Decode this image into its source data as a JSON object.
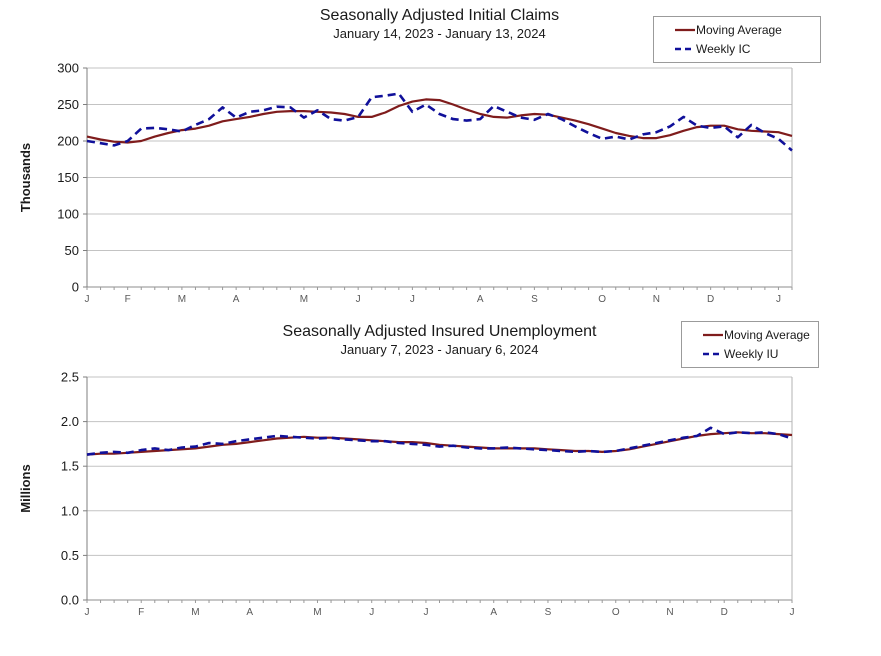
{
  "accent_colors": {
    "moving_average": "#7f1c1c",
    "weekly": "#10109a"
  },
  "chart_data": [
    {
      "type": "line",
      "title": "Seasonally Adjusted Initial Claims",
      "subtitle": "January 14, 2023 - January 13, 2024",
      "ylabel": "Thousands",
      "ylim": [
        0,
        300
      ],
      "ytick_values": [
        0,
        50,
        100,
        150,
        200,
        250,
        300
      ],
      "ytick_labels": [
        "0",
        "50",
        "100",
        "150",
        "200",
        "250",
        "300"
      ],
      "grid": "horizontal",
      "legend_position": "top-right",
      "months": [
        {
          "label": "J",
          "week": 0
        },
        {
          "label": "F",
          "week": 3
        },
        {
          "label": "M",
          "week": 7
        },
        {
          "label": "A",
          "week": 11
        },
        {
          "label": "M",
          "week": 16
        },
        {
          "label": "J",
          "week": 20
        },
        {
          "label": "J",
          "week": 24
        },
        {
          "label": "A",
          "week": 29
        },
        {
          "label": "S",
          "week": 33
        },
        {
          "label": "O",
          "week": 38
        },
        {
          "label": "N",
          "week": 42
        },
        {
          "label": "D",
          "week": 46
        },
        {
          "label": "J",
          "week": 51
        }
      ],
      "series": [
        {
          "name": "Moving Average",
          "style": "solid",
          "color": "#7f1c1c",
          "values": [
            206,
            202,
            199,
            198,
            200,
            206,
            211,
            215,
            217,
            221,
            227,
            230,
            233,
            237,
            240,
            241,
            241,
            240,
            239,
            237,
            233,
            233,
            239,
            248,
            254,
            257,
            256,
            250,
            243,
            237,
            233,
            232,
            235,
            237,
            236,
            232,
            228,
            223,
            217,
            211,
            207,
            204,
            204,
            208,
            214,
            219,
            221,
            221,
            216,
            214,
            213,
            212,
            207
          ]
        },
        {
          "name": "Weekly IC",
          "style": "dashed",
          "color": "#10109a",
          "values": [
            200,
            197,
            194,
            200,
            217,
            218,
            216,
            213,
            222,
            230,
            246,
            232,
            240,
            242,
            247,
            246,
            232,
            242,
            230,
            228,
            233,
            260,
            262,
            265,
            240,
            250,
            237,
            230,
            228,
            230,
            248,
            240,
            232,
            229,
            237,
            230,
            220,
            211,
            203,
            206,
            202,
            209,
            212,
            220,
            233,
            221,
            218,
            220,
            205,
            222,
            211,
            203,
            187
          ]
        }
      ]
    },
    {
      "type": "line",
      "title": "Seasonally Adjusted Insured Unemployment",
      "subtitle": "January 7, 2023 - January 6, 2024",
      "ylabel": "Millions",
      "ylim": [
        0,
        2.5
      ],
      "ytick_values": [
        0,
        0.5,
        1.0,
        1.5,
        2.0,
        2.5
      ],
      "ytick_labels": [
        "0.0",
        "0.5",
        "1.0",
        "1.5",
        "2.0",
        "2.5"
      ],
      "grid": "horizontal",
      "legend_position": "top-right",
      "months": [
        {
          "label": "J",
          "week": 0
        },
        {
          "label": "F",
          "week": 4
        },
        {
          "label": "M",
          "week": 8
        },
        {
          "label": "A",
          "week": 12
        },
        {
          "label": "M",
          "week": 17
        },
        {
          "label": "J",
          "week": 21
        },
        {
          "label": "J",
          "week": 25
        },
        {
          "label": "A",
          "week": 30
        },
        {
          "label": "S",
          "week": 34
        },
        {
          "label": "O",
          "week": 39
        },
        {
          "label": "N",
          "week": 43
        },
        {
          "label": "D",
          "week": 47
        },
        {
          "label": "J",
          "week": 52
        }
      ],
      "series": [
        {
          "name": "Moving Average",
          "style": "solid",
          "color": "#7f1c1c",
          "values": [
            1.63,
            1.64,
            1.64,
            1.65,
            1.66,
            1.67,
            1.68,
            1.69,
            1.7,
            1.72,
            1.74,
            1.75,
            1.77,
            1.79,
            1.81,
            1.82,
            1.83,
            1.82,
            1.82,
            1.81,
            1.8,
            1.79,
            1.78,
            1.77,
            1.77,
            1.76,
            1.74,
            1.73,
            1.72,
            1.71,
            1.7,
            1.7,
            1.7,
            1.7,
            1.69,
            1.68,
            1.67,
            1.67,
            1.66,
            1.67,
            1.69,
            1.72,
            1.75,
            1.78,
            1.81,
            1.84,
            1.86,
            1.87,
            1.88,
            1.87,
            1.87,
            1.86,
            1.85
          ]
        },
        {
          "name": "Weekly IU",
          "style": "dashed",
          "color": "#10109a",
          "values": [
            1.63,
            1.65,
            1.66,
            1.65,
            1.68,
            1.7,
            1.68,
            1.71,
            1.72,
            1.76,
            1.75,
            1.78,
            1.8,
            1.82,
            1.84,
            1.83,
            1.82,
            1.81,
            1.82,
            1.8,
            1.79,
            1.78,
            1.78,
            1.76,
            1.75,
            1.74,
            1.72,
            1.73,
            1.71,
            1.7,
            1.7,
            1.71,
            1.7,
            1.69,
            1.68,
            1.67,
            1.66,
            1.67,
            1.66,
            1.67,
            1.7,
            1.73,
            1.76,
            1.79,
            1.82,
            1.84,
            1.93,
            1.86,
            1.88,
            1.87,
            1.88,
            1.86,
            1.81
          ]
        }
      ]
    }
  ]
}
